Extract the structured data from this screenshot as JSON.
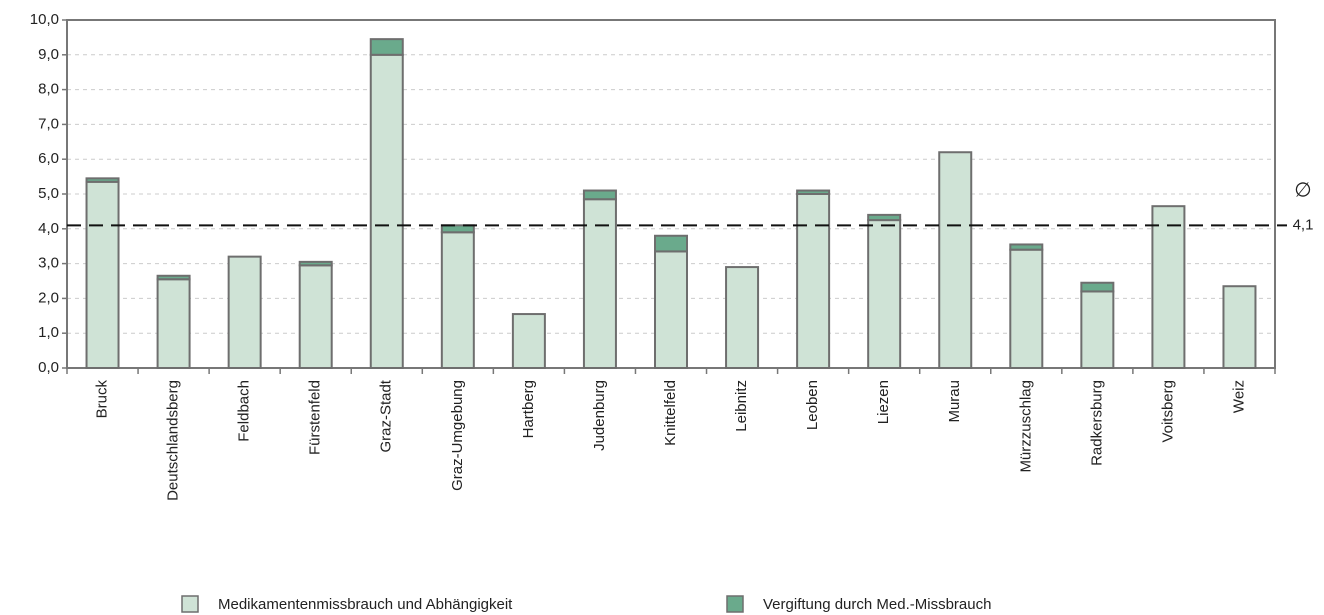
{
  "chart_data": {
    "type": "stacked_bar",
    "categories": [
      "Bruck",
      "Deutschlandsberg",
      "Feldbach",
      "Fürstenfeld",
      "Graz-Stadt",
      "Graz-Umgebung",
      "Hartberg",
      "Judenburg",
      "Knittelfeld",
      "Leibnitz",
      "Leoben",
      "Liezen",
      "Murau",
      "Mürzzuschlag",
      "Radkersburg",
      "Voitsberg",
      "Weiz"
    ],
    "series": [
      {
        "name": "Medikamentenmissbrauch und Abhängigkeit",
        "color": "#cfe3d6",
        "values": [
          5.35,
          2.55,
          3.2,
          2.95,
          9.0,
          3.9,
          1.55,
          4.85,
          3.35,
          2.9,
          5.0,
          4.25,
          6.2,
          3.4,
          2.2,
          4.65,
          2.35
        ]
      },
      {
        "name": "Vergiftung durch Med.-Missbrauch",
        "color": "#6aaa8c",
        "values": [
          0.1,
          0.1,
          0,
          0.1,
          0.45,
          0.2,
          0,
          0.25,
          0.45,
          0,
          0.1,
          0.15,
          0,
          0.15,
          0.25,
          0,
          0
        ]
      }
    ],
    "average": {
      "value": 4.1,
      "label": "4,1"
    },
    "average_symbol": "∅",
    "ylim": [
      0,
      10
    ],
    "yticks": [
      {
        "value": 0,
        "label": "0,0"
      },
      {
        "value": 1,
        "label": "1,0"
      },
      {
        "value": 2,
        "label": "2,0"
      },
      {
        "value": 3,
        "label": "3,0"
      },
      {
        "value": 4,
        "label": "4,0"
      },
      {
        "value": 5,
        "label": "5,0"
      },
      {
        "value": 6,
        "label": "6,0"
      },
      {
        "value": 7,
        "label": "7,0"
      },
      {
        "value": 8,
        "label": "8,0"
      },
      {
        "value": 9,
        "label": "9,0"
      },
      {
        "value": 10,
        "label": "10,0"
      }
    ],
    "grid": true,
    "legend": "bottom"
  }
}
